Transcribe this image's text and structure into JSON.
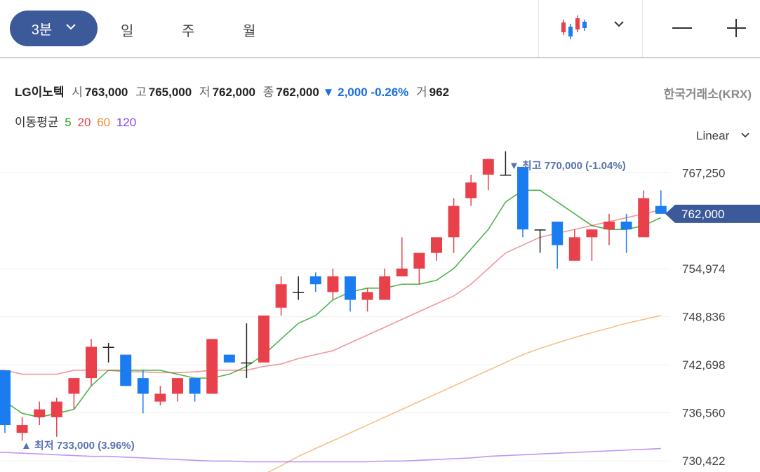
{
  "toolbar": {
    "interval_selected": "3분",
    "timeframes": [
      "일",
      "주",
      "월"
    ]
  },
  "quote": {
    "name": "LG이노텍",
    "open_label": "시",
    "open": "763,000",
    "high_label": "고",
    "high": "765,000",
    "low_label": "저",
    "low": "762,000",
    "close_label": "종",
    "close": "762,000",
    "change": "▼ 2,000",
    "change_pct": "-0.26%",
    "volume_label": "거",
    "volume": "962",
    "exchange": "한국거래소(KRX)"
  },
  "moving_average": {
    "label": "이동평균",
    "periods": [
      "5",
      "20",
      "60",
      "120"
    ],
    "colors": [
      "#22a322",
      "#e8414b",
      "#f08a2a",
      "#8a3ff0"
    ]
  },
  "colors": {
    "up": "#e8414b",
    "down": "#1a7cf0",
    "accent": "#3c5a9a"
  },
  "chart_data": {
    "type": "candlestick",
    "scale": "Linear",
    "ylim": [
      729000,
      770500
    ],
    "y_ticks": [
      "767,250",
      "754,974",
      "748,836",
      "742,698",
      "736,560",
      "730,422"
    ],
    "current_price": "762,000",
    "high_annotation": "▼ 최고 770,000 (-1.04%)",
    "low_annotation": "▲ 최저 733,000 (3.96%)",
    "candles": [
      {
        "o": 742000,
        "h": 742000,
        "l": 734000,
        "c": 735000
      },
      {
        "o": 734000,
        "h": 736000,
        "l": 733000,
        "c": 735000
      },
      {
        "o": 736000,
        "h": 738000,
        "l": 735000,
        "c": 737000
      },
      {
        "o": 736000,
        "h": 738500,
        "l": 733500,
        "c": 738000
      },
      {
        "o": 739000,
        "h": 741000,
        "l": 737000,
        "c": 741000
      },
      {
        "o": 741000,
        "h": 746000,
        "l": 740000,
        "c": 745000
      },
      {
        "o": 745000,
        "h": 745500,
        "l": 743000,
        "c": 745000
      },
      {
        "o": 744000,
        "h": 744000,
        "l": 740000,
        "c": 740000
      },
      {
        "o": 741000,
        "h": 742000,
        "l": 736500,
        "c": 739000
      },
      {
        "o": 738000,
        "h": 740000,
        "l": 737500,
        "c": 739000
      },
      {
        "o": 739000,
        "h": 741000,
        "l": 738000,
        "c": 741000
      },
      {
        "o": 741000,
        "h": 741000,
        "l": 738000,
        "c": 739000
      },
      {
        "o": 739000,
        "h": 746000,
        "l": 739000,
        "c": 746000
      },
      {
        "o": 744000,
        "h": 744000,
        "l": 743000,
        "c": 743000
      },
      {
        "o": 743000,
        "h": 748000,
        "l": 741000,
        "c": 743000
      },
      {
        "o": 743000,
        "h": 749000,
        "l": 743000,
        "c": 749000
      },
      {
        "o": 750000,
        "h": 754000,
        "l": 749000,
        "c": 753000
      },
      {
        "o": 752000,
        "h": 754000,
        "l": 751000,
        "c": 752000
      },
      {
        "o": 754000,
        "h": 754500,
        "l": 752000,
        "c": 753000
      },
      {
        "o": 752000,
        "h": 755000,
        "l": 751000,
        "c": 754000
      },
      {
        "o": 754000,
        "h": 754000,
        "l": 749500,
        "c": 751000
      },
      {
        "o": 751000,
        "h": 752500,
        "l": 749500,
        "c": 752000
      },
      {
        "o": 751000,
        "h": 755000,
        "l": 751000,
        "c": 754000
      },
      {
        "o": 754000,
        "h": 759000,
        "l": 754000,
        "c": 755000
      },
      {
        "o": 755000,
        "h": 757000,
        "l": 753000,
        "c": 757000
      },
      {
        "o": 757000,
        "h": 759000,
        "l": 756000,
        "c": 759000
      },
      {
        "o": 759000,
        "h": 764000,
        "l": 757000,
        "c": 763000
      },
      {
        "o": 764000,
        "h": 767000,
        "l": 763000,
        "c": 766000
      },
      {
        "o": 767000,
        "h": 769000,
        "l": 765000,
        "c": 769000
      },
      {
        "o": 767000,
        "h": 770000,
        "l": 767000,
        "c": 767000
      },
      {
        "o": 768000,
        "h": 768000,
        "l": 759000,
        "c": 760000
      },
      {
        "o": 760000,
        "h": 760000,
        "l": 757000,
        "c": 760000
      },
      {
        "o": 761000,
        "h": 761000,
        "l": 755000,
        "c": 758000
      },
      {
        "o": 756000,
        "h": 760000,
        "l": 756000,
        "c": 759000
      },
      {
        "o": 759000,
        "h": 760000,
        "l": 756000,
        "c": 760000
      },
      {
        "o": 760000,
        "h": 762000,
        "l": 758000,
        "c": 761000
      },
      {
        "o": 761000,
        "h": 762000,
        "l": 757000,
        "c": 760000
      },
      {
        "o": 759000,
        "h": 765000,
        "l": 759000,
        "c": 764000
      },
      {
        "o": 763000,
        "h": 765000,
        "l": 762000,
        "c": 762000
      }
    ],
    "ma_lines": [
      {
        "period": "5",
        "values": [
          738000,
          736500,
          736000,
          736500,
          737000,
          740000,
          742000,
          742000,
          742000,
          742000,
          741500,
          741000,
          741000,
          741500,
          742500,
          744000,
          746000,
          748000,
          749000,
          751000,
          752000,
          752500,
          752500,
          753000,
          753000,
          753500,
          755000,
          757500,
          760000,
          763500,
          765000,
          765000,
          763500,
          762000,
          760500,
          760000,
          760000,
          760500,
          761500
        ]
      },
      {
        "period": "20",
        "values": [
          742000,
          741500,
          741500,
          741500,
          742000,
          742000,
          742000,
          741800,
          741800,
          741700,
          741700,
          741800,
          742000,
          742000,
          742000,
          742500,
          742800,
          743500,
          744000,
          744500,
          745500,
          746500,
          747500,
          748500,
          749500,
          750500,
          751500,
          753000,
          755000,
          757000,
          758000,
          759000,
          759500,
          760000,
          760500,
          761000,
          761500,
          762000,
          762500
        ]
      },
      {
        "period": "60",
        "values": [
          null,
          null,
          null,
          null,
          null,
          null,
          null,
          null,
          null,
          null,
          null,
          null,
          null,
          null,
          727500,
          728700,
          729800,
          731000,
          732000,
          733000,
          734000,
          735000,
          736000,
          737000,
          738000,
          739000,
          740000,
          741000,
          742000,
          743000,
          744000,
          744800,
          745500,
          746200,
          746800,
          747400,
          748000,
          748500,
          749000
        ]
      },
      {
        "period": "120",
        "values": [
          731500,
          731400,
          731300,
          731200,
          731100,
          731000,
          731000,
          730900,
          730800,
          730700,
          730600,
          730500,
          730400,
          730400,
          730300,
          730300,
          730300,
          730300,
          730300,
          730300,
          730300,
          730300,
          730400,
          730400,
          730500,
          730600,
          730700,
          730800,
          731000,
          731100,
          731200,
          731300,
          731400,
          731500,
          731600,
          731700,
          731800,
          731900,
          732000
        ]
      }
    ]
  }
}
